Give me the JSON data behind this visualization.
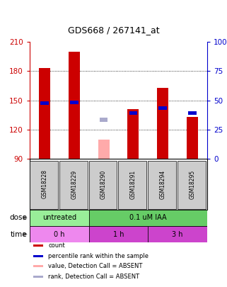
{
  "title": "GDS668 / 267141_at",
  "samples": [
    "GSM18228",
    "GSM18229",
    "GSM18290",
    "GSM18291",
    "GSM18294",
    "GSM18295"
  ],
  "bar_bottom": 90,
  "ylim": [
    90,
    210
  ],
  "yticks": [
    90,
    120,
    150,
    180,
    210
  ],
  "right_ylim": [
    0,
    100
  ],
  "right_yticks": [
    0,
    25,
    50,
    75,
    100
  ],
  "right_yticklabels": [
    "0",
    "25",
    "50",
    "75",
    "100%"
  ],
  "count_values": [
    183,
    200,
    null,
    141,
    163,
    133
  ],
  "count_color": "#cc0000",
  "rank_values": [
    147,
    148,
    null,
    137,
    142,
    137
  ],
  "rank_color": "#0000cc",
  "absent_count_values": [
    null,
    null,
    110,
    null,
    null,
    null
  ],
  "absent_rank_values": [
    null,
    null,
    130,
    null,
    null,
    null
  ],
  "absent_count_color": "#ffaaaa",
  "absent_rank_color": "#aaaacc",
  "dose_labels": [
    {
      "label": "untreated",
      "span": [
        0,
        2
      ],
      "color": "#99ee99"
    },
    {
      "label": "0.1 uM IAA",
      "span": [
        2,
        6
      ],
      "color": "#66cc66"
    }
  ],
  "time_labels": [
    {
      "label": "0 h",
      "span": [
        0,
        2
      ],
      "color": "#ee88ee"
    },
    {
      "label": "1 h",
      "span": [
        2,
        4
      ],
      "color": "#cc44cc"
    },
    {
      "label": "3 h",
      "span": [
        4,
        6
      ],
      "color": "#cc44cc"
    }
  ],
  "ylabel_left_color": "#cc0000",
  "ylabel_right_color": "#0000cc",
  "sample_bg_color": "#cccccc",
  "bar_width": 0.38,
  "rank_bar_width": 0.28,
  "rank_bar_height": 4
}
